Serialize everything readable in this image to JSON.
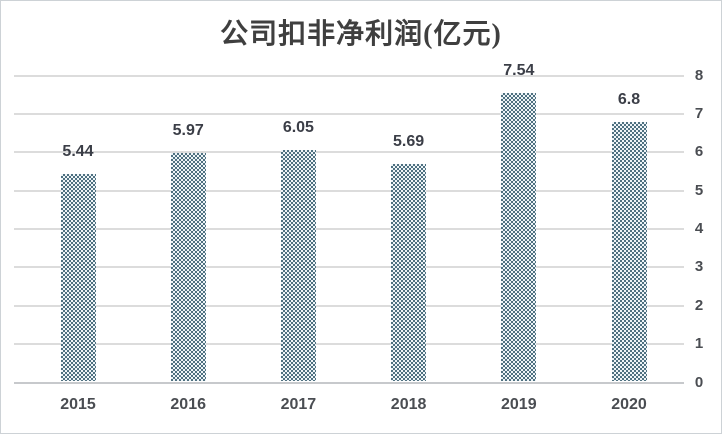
{
  "page": {
    "background": "#ffffff",
    "frame_border_color": "#cdd2d6"
  },
  "chart_data": {
    "type": "bar",
    "title": "公司扣非净利润(亿元)",
    "categories": [
      "2015",
      "2016",
      "2017",
      "2018",
      "2019",
      "2020"
    ],
    "values": [
      5.44,
      5.97,
      6.05,
      5.69,
      7.54,
      6.8
    ],
    "value_labels": [
      "5.44",
      "5.97",
      "6.05",
      "5.69",
      "7.54",
      "6.8"
    ],
    "xlabel": "",
    "ylabel": "",
    "ylim": [
      0,
      8
    ],
    "y_ticks": [
      "0",
      "1",
      "2",
      "3",
      "4",
      "5",
      "6",
      "7",
      "8"
    ],
    "y_axis_position": "right",
    "grid": true,
    "legend_position": "none",
    "bar_fill_pattern": "dotted-diamond",
    "colors": {
      "bar_pattern_dot": "#4e7080",
      "bar_pattern_background": "#eef4f7",
      "gridline": "#dcdcdc",
      "axis_line": "#c7c9cc",
      "title_text": "#3f3f3f",
      "value_label_text": "#3b3e47",
      "tick_text": "#4a4d52"
    }
  }
}
